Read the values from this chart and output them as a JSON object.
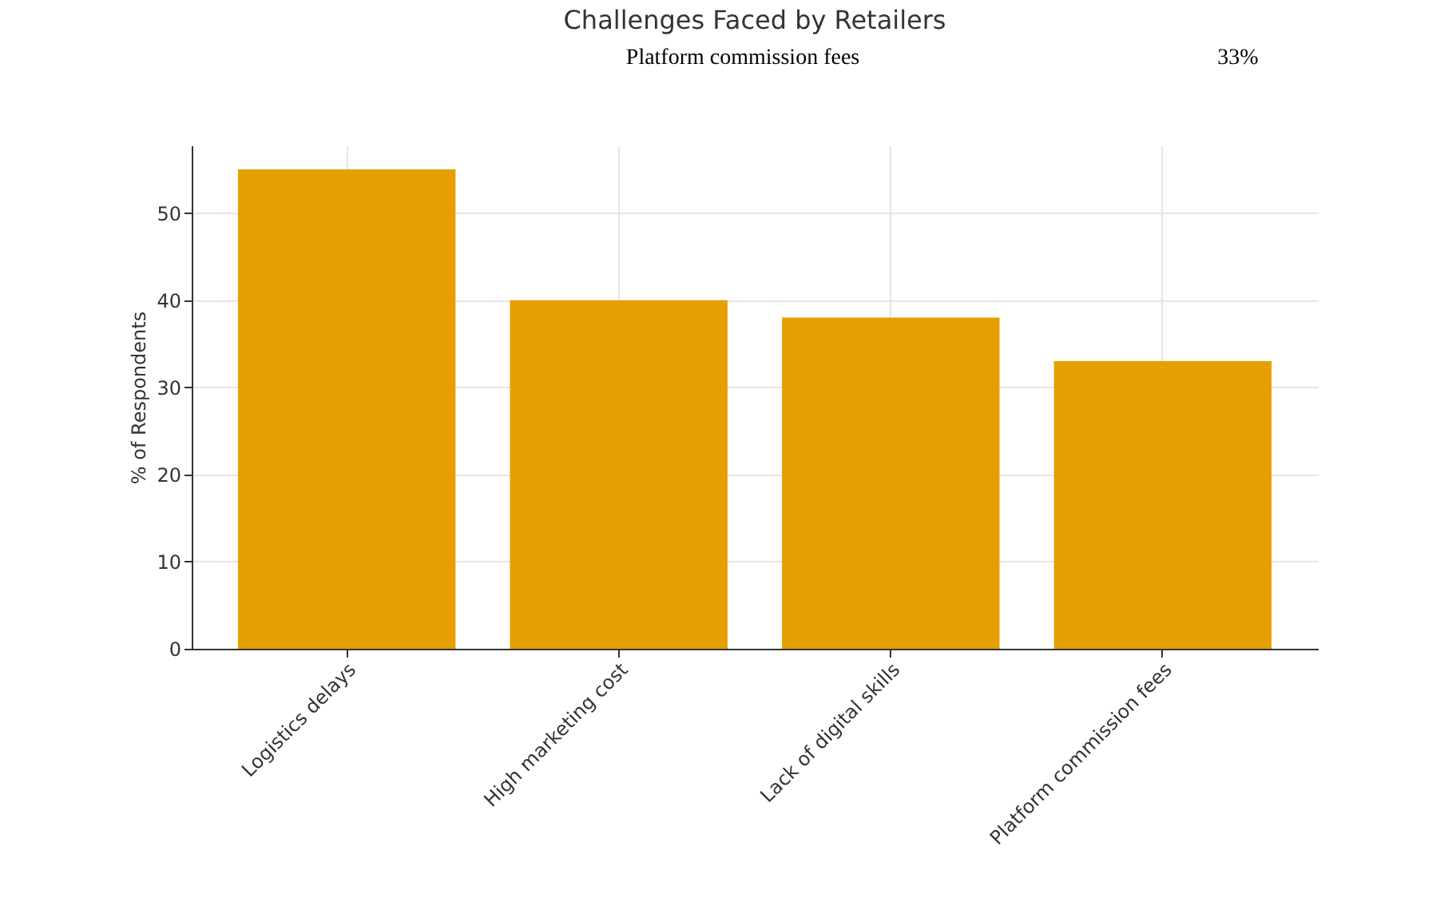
{
  "chart_data": {
    "type": "bar",
    "title": "Challenges Faced by Retailers",
    "ylabel": "% of Respondents",
    "categories": [
      "Logistics delays",
      "High marketing cost",
      "Lack of digital skills",
      "Platform commission fees"
    ],
    "values": [
      55,
      40,
      38,
      33
    ],
    "color": "#e69f00",
    "ylim": [
      0,
      57.75
    ],
    "yticks": [
      0,
      10,
      20,
      30,
      40,
      50
    ],
    "grid": true,
    "annotations": [
      "Platform commission fees",
      "33%"
    ]
  }
}
